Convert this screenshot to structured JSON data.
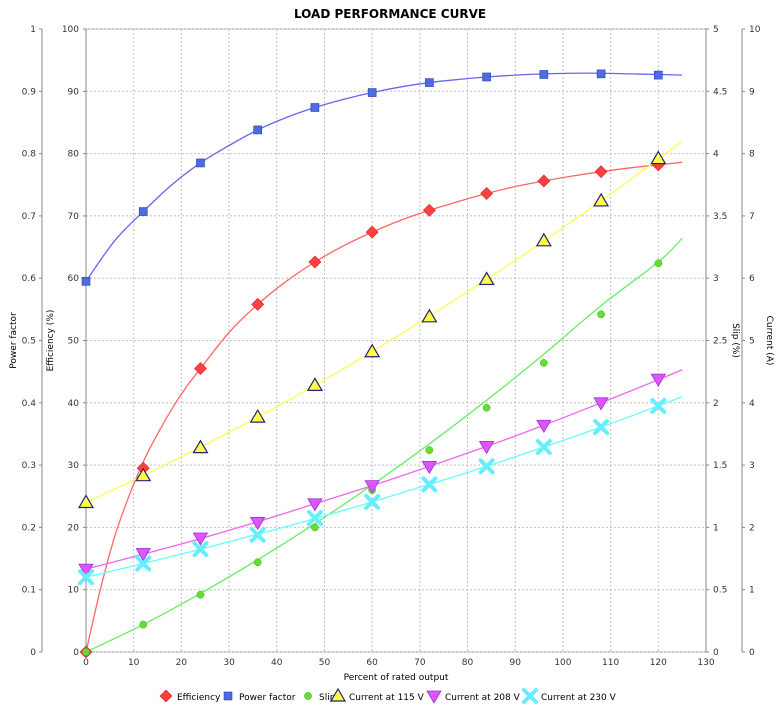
{
  "chart_data": {
    "type": "scatter",
    "title": "LOAD PERFORMANCE CURVE",
    "xlabel": "Percent of rated output",
    "xlim": [
      0,
      130
    ],
    "x_ticks": [
      "0",
      "10",
      "20",
      "30",
      "40",
      "50",
      "60",
      "70",
      "80",
      "90",
      "100",
      "110",
      "120",
      "130"
    ],
    "grid": true,
    "legend_position": "bottom",
    "axes": {
      "power_factor": {
        "label": "Power factor",
        "side": "left-outer",
        "lim": [
          0,
          1
        ],
        "ticks": [
          "0",
          "0.1",
          "0.2",
          "0.3",
          "0.4",
          "0.5",
          "0.6",
          "0.7",
          "0.8",
          "0.9",
          "1"
        ]
      },
      "efficiency": {
        "label": "Efficiency (%)",
        "side": "left-inner",
        "lim": [
          0,
          100
        ],
        "ticks": [
          "0",
          "10",
          "20",
          "30",
          "40",
          "50",
          "60",
          "70",
          "80",
          "90",
          "100"
        ]
      },
      "slip": {
        "label": "Slip (%)",
        "side": "right-inner",
        "lim": [
          0,
          5
        ],
        "ticks": [
          "0",
          "0.5",
          "1",
          "1.5",
          "2",
          "2.5",
          "3",
          "3.5",
          "4",
          "4.5",
          "5"
        ]
      },
      "current": {
        "label": "Current (A)",
        "side": "right-outer",
        "lim": [
          0,
          10
        ],
        "ticks": [
          "0",
          "1",
          "2",
          "3",
          "4",
          "5",
          "6",
          "7",
          "8",
          "9",
          "10"
        ]
      }
    },
    "series": [
      {
        "name": "Efficiency",
        "axis": "efficiency",
        "color": "#ff4040",
        "line_color": "#ff6666",
        "marker": "diamond",
        "x": [
          0,
          12,
          24,
          36,
          48,
          60,
          72,
          84,
          96,
          108,
          120
        ],
        "y": [
          0,
          29.5,
          45.5,
          55.8,
          62.6,
          67.4,
          70.9,
          73.6,
          75.6,
          77.1,
          78.2
        ],
        "fit": [
          [
            0,
            0
          ],
          [
            3,
            10
          ],
          [
            6,
            18.5
          ],
          [
            9,
            25
          ],
          [
            12,
            30.5
          ],
          [
            15,
            35
          ],
          [
            18,
            39
          ],
          [
            21,
            42.5
          ],
          [
            24,
            45.5
          ],
          [
            30,
            51.3
          ],
          [
            36,
            55.8
          ],
          [
            42,
            59.5
          ],
          [
            48,
            62.6
          ],
          [
            54,
            65.2
          ],
          [
            60,
            67.4
          ],
          [
            66,
            69.3
          ],
          [
            72,
            70.9
          ],
          [
            78,
            72.3
          ],
          [
            84,
            73.6
          ],
          [
            90,
            74.7
          ],
          [
            96,
            75.6
          ],
          [
            102,
            76.4
          ],
          [
            108,
            77.1
          ],
          [
            114,
            77.7
          ],
          [
            120,
            78.2
          ],
          [
            125,
            78.6
          ]
        ]
      },
      {
        "name": "Power factor",
        "axis": "power_factor",
        "color": "#4d6be3",
        "line_color": "#6666ee",
        "marker": "square",
        "x": [
          0,
          12,
          24,
          36,
          48,
          60,
          72,
          84,
          96,
          108,
          120
        ],
        "y": [
          0.595,
          0.707,
          0.785,
          0.838,
          0.874,
          0.898,
          0.914,
          0.923,
          0.927,
          0.928,
          0.926
        ],
        "fit": [
          [
            0,
            0.595
          ],
          [
            6,
            0.66
          ],
          [
            12,
            0.707
          ],
          [
            18,
            0.75
          ],
          [
            24,
            0.785
          ],
          [
            30,
            0.813
          ],
          [
            36,
            0.838
          ],
          [
            42,
            0.858
          ],
          [
            48,
            0.874
          ],
          [
            54,
            0.887
          ],
          [
            60,
            0.898
          ],
          [
            66,
            0.907
          ],
          [
            72,
            0.914
          ],
          [
            78,
            0.919
          ],
          [
            84,
            0.923
          ],
          [
            90,
            0.926
          ],
          [
            96,
            0.928
          ],
          [
            102,
            0.929
          ],
          [
            108,
            0.929
          ],
          [
            114,
            0.928
          ],
          [
            120,
            0.927
          ],
          [
            125,
            0.926
          ]
        ]
      },
      {
        "name": "Slip",
        "axis": "slip",
        "color": "#66dd33",
        "line_color": "#66ee66",
        "marker": "circle",
        "x": [
          0,
          12,
          24,
          36,
          48,
          60,
          72,
          84,
          96,
          108,
          120
        ],
        "y": [
          0,
          0.22,
          0.46,
          0.72,
          1.0,
          1.3,
          1.62,
          1.96,
          2.32,
          2.71,
          3.12
        ],
        "fit": [
          [
            0,
            0
          ],
          [
            12,
            0.22
          ],
          [
            24,
            0.47
          ],
          [
            36,
            0.74
          ],
          [
            48,
            1.03
          ],
          [
            60,
            1.34
          ],
          [
            72,
            1.67
          ],
          [
            84,
            2.02
          ],
          [
            96,
            2.39
          ],
          [
            108,
            2.78
          ],
          [
            120,
            3.13
          ],
          [
            125,
            3.32
          ]
        ]
      },
      {
        "name": "Current at 115 V",
        "axis": "current",
        "color": "#ffff44",
        "line_color": "#ffff55",
        "marker": "triangle",
        "x": [
          0,
          12,
          24,
          36,
          48,
          60,
          72,
          84,
          96,
          108,
          120
        ],
        "y": [
          2.4,
          2.83,
          3.28,
          3.77,
          4.28,
          4.82,
          5.38,
          5.98,
          6.6,
          7.24,
          7.92
        ],
        "fit": [
          [
            0,
            2.4
          ],
          [
            12,
            2.83
          ],
          [
            24,
            3.29
          ],
          [
            36,
            3.77
          ],
          [
            48,
            4.28
          ],
          [
            60,
            4.82
          ],
          [
            72,
            5.39
          ],
          [
            84,
            5.98
          ],
          [
            96,
            6.6
          ],
          [
            108,
            7.24
          ],
          [
            120,
            7.91
          ],
          [
            125,
            8.2
          ]
        ]
      },
      {
        "name": "Current at 208 V",
        "axis": "current",
        "color": "#dd55ff",
        "line_color": "#ee66ee",
        "marker": "triangle-down",
        "x": [
          0,
          12,
          24,
          36,
          48,
          60,
          72,
          84,
          96,
          108,
          120
        ],
        "y": [
          1.33,
          1.58,
          1.83,
          2.08,
          2.38,
          2.67,
          2.98,
          3.3,
          3.64,
          4.0,
          4.38
        ],
        "fit": [
          [
            0,
            1.33
          ],
          [
            12,
            1.57
          ],
          [
            24,
            1.82
          ],
          [
            36,
            2.09
          ],
          [
            48,
            2.38
          ],
          [
            60,
            2.67
          ],
          [
            72,
            2.98
          ],
          [
            84,
            3.3
          ],
          [
            96,
            3.64
          ],
          [
            108,
            4.0
          ],
          [
            120,
            4.37
          ],
          [
            125,
            4.53
          ]
        ]
      },
      {
        "name": "Current at 230 V",
        "axis": "current",
        "color": "#66eeff",
        "line_color": "#66ffff",
        "marker": "x",
        "x": [
          0,
          12,
          24,
          36,
          48,
          60,
          72,
          84,
          96,
          108,
          120
        ],
        "y": [
          1.2,
          1.42,
          1.65,
          1.88,
          2.15,
          2.41,
          2.69,
          2.98,
          3.29,
          3.61,
          3.95
        ],
        "fit": [
          [
            0,
            1.2
          ],
          [
            12,
            1.42
          ],
          [
            24,
            1.65
          ],
          [
            36,
            1.89
          ],
          [
            48,
            2.14
          ],
          [
            60,
            2.41
          ],
          [
            72,
            2.69
          ],
          [
            84,
            2.98
          ],
          [
            96,
            3.29
          ],
          [
            108,
            3.61
          ],
          [
            120,
            3.95
          ],
          [
            125,
            4.1
          ]
        ]
      }
    ]
  }
}
